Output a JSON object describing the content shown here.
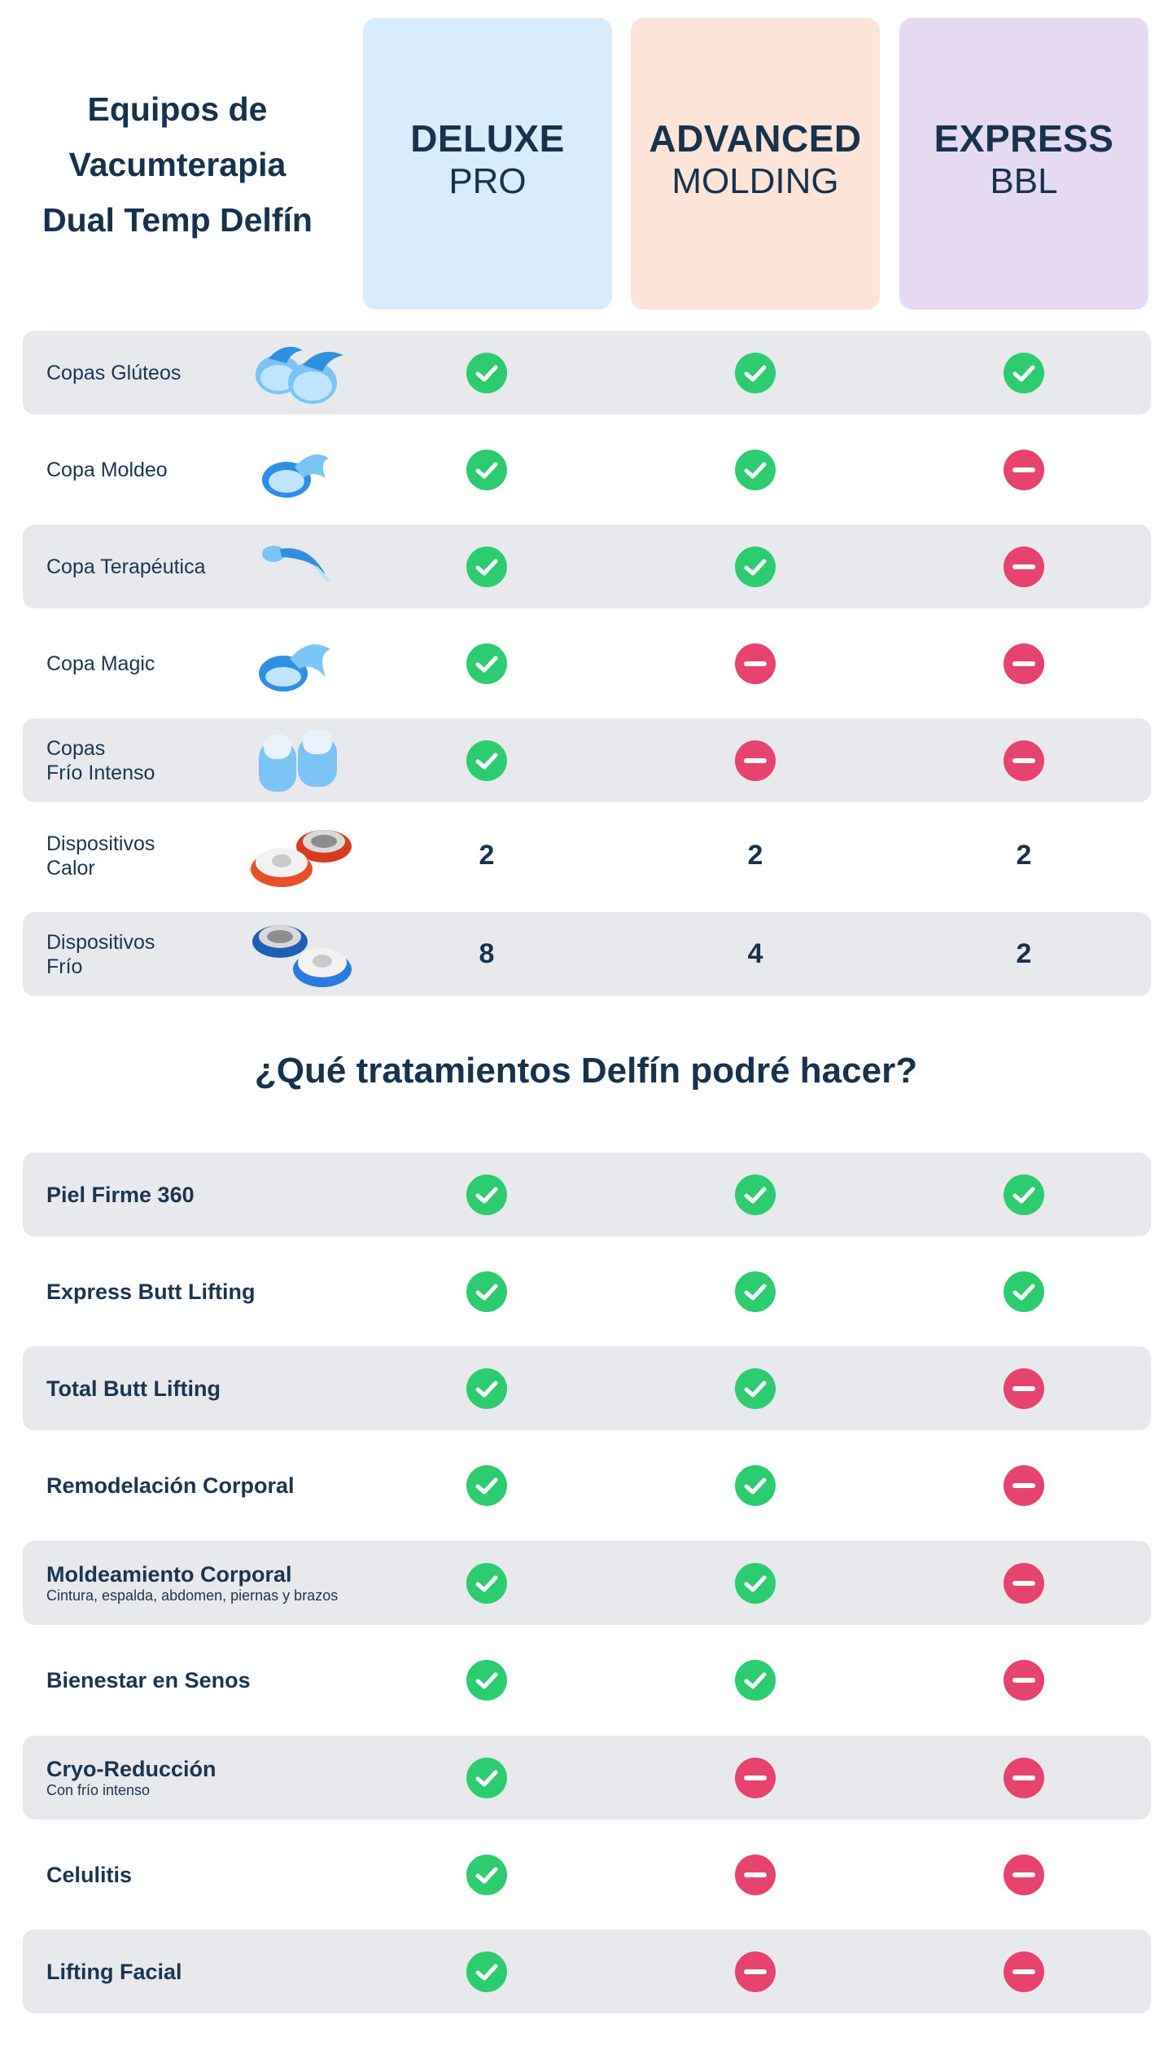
{
  "header": {
    "title_lines": [
      "Equipos de",
      "Vacumterapia",
      "Dual Temp Delfín"
    ],
    "columns": [
      {
        "name": "DELUXE",
        "sub": "PRO",
        "color": "#d8ecfb"
      },
      {
        "name": "ADVANCED",
        "sub": "MOLDING",
        "color": "#fde4d8"
      },
      {
        "name": "EXPRESS",
        "sub": "BBL",
        "color": "#e6d9f2"
      }
    ]
  },
  "colors": {
    "check": "#2ecc71",
    "minus": "#e6436e",
    "row_shade": "#e8e9ec"
  },
  "equipment_rows": [
    {
      "label_lines": [
        "Copas Glúteos"
      ],
      "image": "glute-cups-image",
      "values": [
        "check",
        "check",
        "check"
      ]
    },
    {
      "label_lines": [
        "Copa Moldeo"
      ],
      "image": "molding-cup-image",
      "values": [
        "check",
        "check",
        "minus"
      ]
    },
    {
      "label_lines": [
        "Copa Terapéutica"
      ],
      "image": "therapeutic-cup-image",
      "values": [
        "check",
        "check",
        "minus"
      ]
    },
    {
      "label_lines": [
        "Copa Magic"
      ],
      "image": "magic-cup-image",
      "values": [
        "check",
        "minus",
        "minus"
      ]
    },
    {
      "label_lines": [
        "Copas",
        "Frío Intenso"
      ],
      "image": "cold-cups-image",
      "values": [
        "check",
        "minus",
        "minus"
      ]
    },
    {
      "label_lines": [
        "Dispositivos",
        "Calor"
      ],
      "image": "heat-devices-image",
      "values": [
        "2",
        "2",
        "2"
      ]
    },
    {
      "label_lines": [
        "Dispositivos",
        "Frío"
      ],
      "image": "cold-devices-image",
      "values": [
        "8",
        "4",
        "2"
      ]
    }
  ],
  "treatments_title": "¿Qué tratamientos Delfín podré hacer?",
  "treatment_rows": [
    {
      "label": "Piel Firme 360",
      "note": "",
      "values": [
        "check",
        "check",
        "check"
      ]
    },
    {
      "label": "Express Butt Lifting",
      "note": "",
      "values": [
        "check",
        "check",
        "check"
      ]
    },
    {
      "label": "Total Butt Lifting",
      "note": "",
      "values": [
        "check",
        "check",
        "minus"
      ]
    },
    {
      "label": "Remodelación Corporal",
      "note": "",
      "values": [
        "check",
        "check",
        "minus"
      ]
    },
    {
      "label": "Moldeamiento Corporal",
      "note": "Cintura, espalda, abdomen, piernas y brazos",
      "values": [
        "check",
        "check",
        "minus"
      ]
    },
    {
      "label": "Bienestar en Senos",
      "note": "",
      "values": [
        "check",
        "check",
        "minus"
      ]
    },
    {
      "label": "Cryo-Reducción",
      "note": "Con frío intenso",
      "values": [
        "check",
        "minus",
        "minus"
      ]
    },
    {
      "label": "Celulitis",
      "note": "",
      "values": [
        "check",
        "minus",
        "minus"
      ]
    },
    {
      "label": "Lifting Facial",
      "note": "",
      "values": [
        "check",
        "minus",
        "minus"
      ]
    }
  ]
}
